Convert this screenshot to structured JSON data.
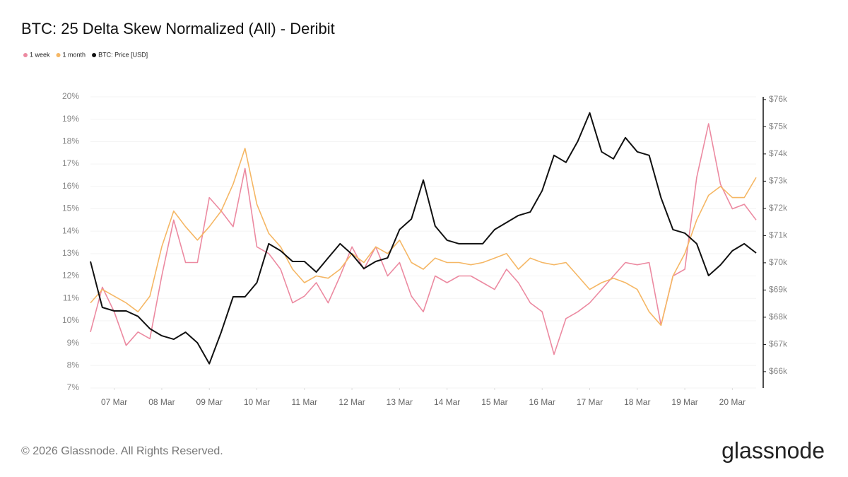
{
  "chart_data": {
    "type": "line",
    "title": "BTC: 25 Delta Skew Normalized (All) - Deribit",
    "footer": "© 2026 Glassnode. All Rights Reserved.",
    "logo": "glassnode",
    "x": [
      6.5,
      6.75,
      7,
      7.25,
      7.5,
      7.75,
      8,
      8.25,
      8.5,
      8.75,
      9,
      9.25,
      9.5,
      9.75,
      10,
      10.25,
      10.5,
      10.75,
      11,
      11.25,
      11.5,
      11.75,
      12,
      12.25,
      12.5,
      12.75,
      13,
      13.25,
      13.5,
      13.75,
      14,
      14.25,
      14.5,
      14.75,
      15,
      15.25,
      15.5,
      15.75,
      16,
      16.25,
      16.5,
      16.75,
      17,
      17.25,
      17.5,
      17.75,
      18,
      18.25,
      18.5,
      18.75,
      19,
      19.25,
      19.5,
      19.75,
      20,
      20.25,
      20.5
    ],
    "xlim": [
      6.5,
      20.5
    ],
    "xticks": [
      {
        "value": 7,
        "label": "07 Mar"
      },
      {
        "value": 8,
        "label": "08 Mar"
      },
      {
        "value": 9,
        "label": "09 Mar"
      },
      {
        "value": 10,
        "label": "10 Mar"
      },
      {
        "value": 11,
        "label": "11 Mar"
      },
      {
        "value": 12,
        "label": "12 Mar"
      },
      {
        "value": 13,
        "label": "13 Mar"
      },
      {
        "value": 14,
        "label": "14 Mar"
      },
      {
        "value": 15,
        "label": "15 Mar"
      },
      {
        "value": 16,
        "label": "16 Mar"
      },
      {
        "value": 17,
        "label": "17 Mar"
      },
      {
        "value": 18,
        "label": "18 Mar"
      },
      {
        "value": 19,
        "label": "19 Mar"
      },
      {
        "value": 20,
        "label": "20 Mar"
      }
    ],
    "ylim": [
      7,
      20
    ],
    "yticks": [
      {
        "value": 7,
        "label": "7%"
      },
      {
        "value": 8,
        "label": "8%"
      },
      {
        "value": 9,
        "label": "9%"
      },
      {
        "value": 10,
        "label": "10%"
      },
      {
        "value": 11,
        "label": "11%"
      },
      {
        "value": 12,
        "label": "12%"
      },
      {
        "value": 13,
        "label": "13%"
      },
      {
        "value": 14,
        "label": "14%"
      },
      {
        "value": 15,
        "label": "15%"
      },
      {
        "value": 16,
        "label": "16%"
      },
      {
        "value": 17,
        "label": "17%"
      },
      {
        "value": 18,
        "label": "18%"
      },
      {
        "value": 19,
        "label": "19%"
      },
      {
        "value": 20,
        "label": "20%"
      }
    ],
    "y2lim": [
      65400,
      76100
    ],
    "y2ticks": [
      {
        "value": 66000,
        "label": "$66k"
      },
      {
        "value": 67000,
        "label": "$67k"
      },
      {
        "value": 68000,
        "label": "$68k"
      },
      {
        "value": 69000,
        "label": "$69k"
      },
      {
        "value": 70000,
        "label": "$70k"
      },
      {
        "value": 71000,
        "label": "$71k"
      },
      {
        "value": 72000,
        "label": "$72k"
      },
      {
        "value": 73000,
        "label": "$73k"
      },
      {
        "value": 74000,
        "label": "$74k"
      },
      {
        "value": 75000,
        "label": "$75k"
      },
      {
        "value": 76000,
        "label": "$76k"
      }
    ],
    "grid": true,
    "series": [
      {
        "name": "1 week",
        "color": "#ec8aa1",
        "values": [
          9.5,
          11.5,
          10.4,
          8.9,
          9.5,
          9.2,
          12.0,
          14.5,
          12.6,
          12.6,
          15.5,
          14.9,
          14.2,
          16.8,
          13.3,
          13.0,
          12.3,
          10.8,
          11.1,
          11.7,
          10.8,
          12.0,
          13.3,
          12.3,
          13.3,
          12.0,
          12.6,
          11.1,
          10.4,
          12.0,
          11.7,
          12.0,
          12.0,
          11.7,
          11.4,
          12.3,
          11.7,
          10.8,
          10.4,
          8.5,
          10.1,
          10.4,
          10.8,
          11.4,
          12.0,
          12.6,
          12.5,
          12.6,
          9.8,
          12.0,
          12.3,
          16.4,
          18.8,
          16.1,
          15.0,
          15.2,
          14.5
        ]
      },
      {
        "name": "1 month",
        "color": "#f5b765",
        "values": [
          10.8,
          11.4,
          11.1,
          10.8,
          10.4,
          11.1,
          13.3,
          14.9,
          14.2,
          13.6,
          14.2,
          14.9,
          16.1,
          17.7,
          15.2,
          13.9,
          13.3,
          12.3,
          11.7,
          12.0,
          11.9,
          12.3,
          13.0,
          12.6,
          13.3,
          13.0,
          13.6,
          12.6,
          12.3,
          12.8,
          12.6,
          12.6,
          12.5,
          12.6,
          12.8,
          13.0,
          12.3,
          12.8,
          12.6,
          12.5,
          12.6,
          12.0,
          11.4,
          11.7,
          11.9,
          11.7,
          11.4,
          10.4,
          9.8,
          12.0,
          13.0,
          14.5,
          15.6,
          16.0,
          15.5,
          15.5,
          16.4
        ]
      },
      {
        "name": "BTC: Price [USD]",
        "color": "#111111",
        "axis": "y2",
        "values": [
          70050,
          68360,
          68230,
          68230,
          68030,
          67580,
          67320,
          67190,
          67450,
          67060,
          66290,
          67450,
          68750,
          68750,
          69270,
          70700,
          70440,
          70050,
          70050,
          69660,
          70180,
          70700,
          70310,
          69790,
          70050,
          70180,
          71220,
          71610,
          73040,
          71350,
          70830,
          70700,
          70700,
          70700,
          71220,
          71480,
          71740,
          71870,
          72650,
          73950,
          73690,
          74470,
          75510,
          74080,
          73820,
          74600,
          74080,
          73950,
          72390,
          71220,
          71090,
          70700,
          69530,
          69920,
          70440,
          70700,
          70360
        ]
      }
    ]
  }
}
